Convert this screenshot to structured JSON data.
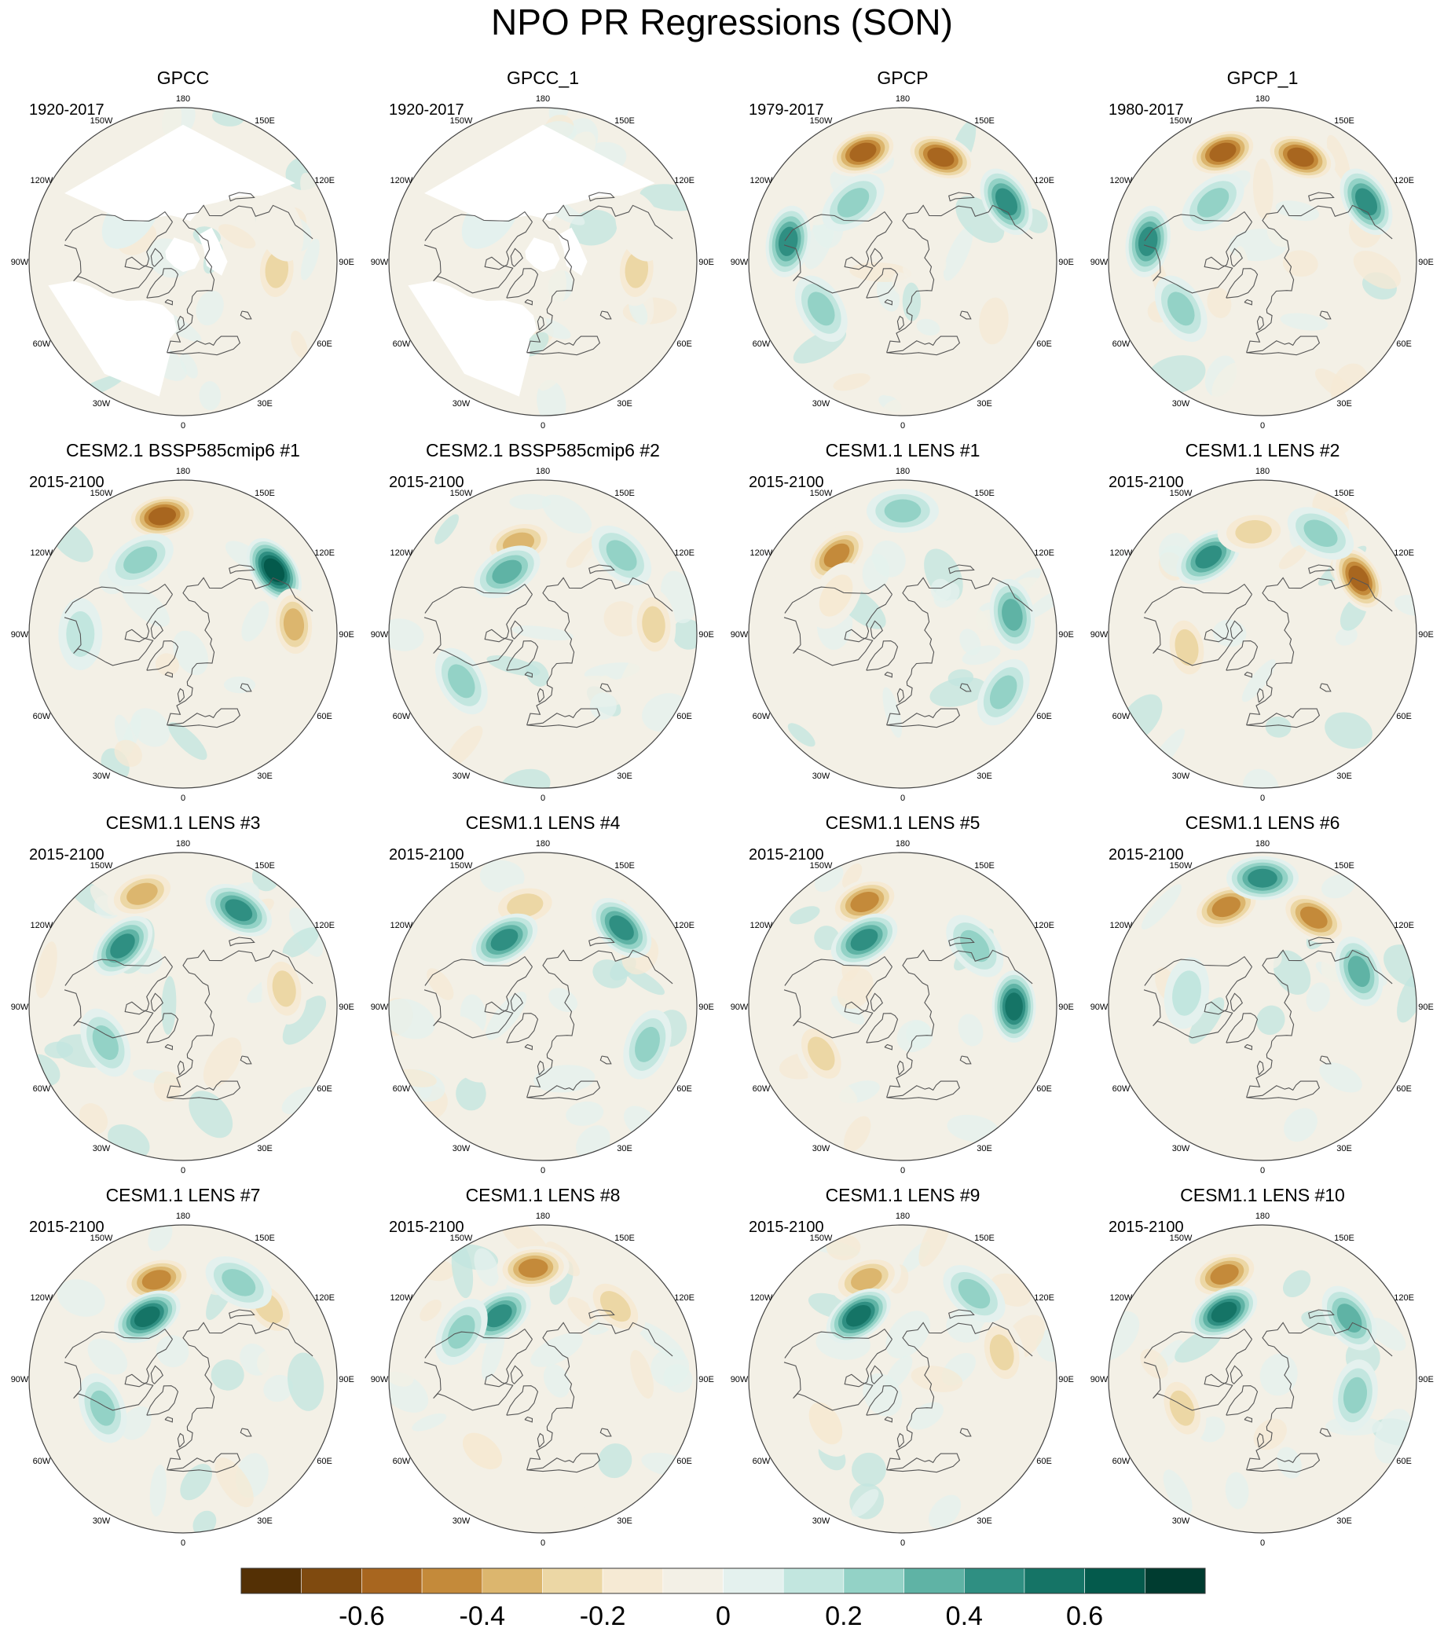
{
  "title": "NPO PR Regressions (SON)",
  "lon_labels": [
    "180",
    "150E",
    "120E",
    "90E",
    "60E",
    "30E",
    "0",
    "30W",
    "60W",
    "90W",
    "120W",
    "150W"
  ],
  "palette": [
    "#543005",
    "#7f4a0f",
    "#a8661f",
    "#c48a3a",
    "#dcb66e",
    "#ecd7a5",
    "#f6ead4",
    "#f3f0e6",
    "#e4f1ee",
    "#c2e6df",
    "#93d2c6",
    "#5fb3a5",
    "#2f8f82",
    "#157466",
    "#045a4c",
    "#003c30"
  ],
  "chart_data": {
    "type": "heatmap",
    "title": "NPO PR Regressions (SON)",
    "projection": "north-polar-stereographic",
    "colorbar": {
      "levels": [
        -0.7,
        -0.6,
        -0.5,
        -0.4,
        -0.3,
        -0.2,
        -0.1,
        0,
        0.1,
        0.2,
        0.3,
        0.4,
        0.5,
        0.6,
        0.7
      ],
      "tick_labels": [
        "-0.6",
        "-0.4",
        "-0.2",
        "0",
        "0.2",
        "0.4",
        "0.6"
      ],
      "tick_values": [
        -0.6,
        -0.4,
        -0.2,
        0,
        0.2,
        0.4,
        0.6
      ]
    },
    "panels": [
      {
        "name": "GPCC",
        "period": "1920-2017",
        "features": [
          {
            "lon": 85,
            "lat": 35,
            "value": -0.3
          },
          {
            "lon": 110,
            "lat": 30,
            "value": -0.15
          },
          {
            "lon": 230,
            "lat": 50,
            "value": 0.15
          }
        ]
      },
      {
        "name": "GPCC_1",
        "period": "1920-2017",
        "features": [
          {
            "lon": 85,
            "lat": 35,
            "value": -0.3
          },
          {
            "lon": 110,
            "lat": 30,
            "value": -0.15
          },
          {
            "lon": 230,
            "lat": 50,
            "value": 0.15
          }
        ]
      },
      {
        "name": "GPCP",
        "period": "1979-2017",
        "features": [
          {
            "lon": 200,
            "lat": 22,
            "value": -0.55
          },
          {
            "lon": 160,
            "lat": 25,
            "value": -0.6
          },
          {
            "lon": 120,
            "lat": 20,
            "value": 0.5
          },
          {
            "lon": 260,
            "lat": 22,
            "value": 0.45
          },
          {
            "lon": 300,
            "lat": 35,
            "value": 0.3
          },
          {
            "lon": 220,
            "lat": 45,
            "value": 0.25
          }
        ]
      },
      {
        "name": "GPCP_1",
        "period": "1980-2017",
        "features": [
          {
            "lon": 200,
            "lat": 22,
            "value": -0.55
          },
          {
            "lon": 160,
            "lat": 25,
            "value": -0.6
          },
          {
            "lon": 120,
            "lat": 20,
            "value": 0.5
          },
          {
            "lon": 260,
            "lat": 22,
            "value": 0.45
          },
          {
            "lon": 300,
            "lat": 35,
            "value": 0.3
          },
          {
            "lon": 220,
            "lat": 45,
            "value": 0.25
          }
        ]
      },
      {
        "name": "CESM2.1 BSSP585cmip6 #1",
        "period": "2015-2100",
        "features": [
          {
            "lon": 190,
            "lat": 20,
            "value": -0.55
          },
          {
            "lon": 125,
            "lat": 25,
            "value": 0.65
          },
          {
            "lon": 210,
            "lat": 40,
            "value": 0.35
          },
          {
            "lon": 95,
            "lat": 25,
            "value": -0.4
          },
          {
            "lon": 270,
            "lat": 30,
            "value": 0.2
          }
        ]
      },
      {
        "name": "CESM2.1 BSSP585cmip6 #2",
        "period": "2015-2100",
        "features": [
          {
            "lon": 195,
            "lat": 35,
            "value": -0.4
          },
          {
            "lon": 210,
            "lat": 48,
            "value": 0.4
          },
          {
            "lon": 135,
            "lat": 25,
            "value": 0.35
          },
          {
            "lon": 95,
            "lat": 25,
            "value": -0.35
          },
          {
            "lon": 300,
            "lat": 35,
            "value": 0.25
          }
        ]
      },
      {
        "name": "CESM1.1 LENS #1",
        "period": "2015-2100",
        "features": [
          {
            "lon": 220,
            "lat": 30,
            "value": -0.45
          },
          {
            "lon": 180,
            "lat": 18,
            "value": 0.3
          },
          {
            "lon": 100,
            "lat": 25,
            "value": 0.4
          },
          {
            "lon": 60,
            "lat": 22,
            "value": 0.35
          },
          {
            "lon": 240,
            "lat": 45,
            "value": -0.2
          }
        ]
      },
      {
        "name": "CESM1.1 LENS #2",
        "period": "2015-2100",
        "features": [
          {
            "lon": 215,
            "lat": 35,
            "value": 0.45
          },
          {
            "lon": 185,
            "lat": 30,
            "value": -0.35
          },
          {
            "lon": 120,
            "lat": 25,
            "value": -0.55
          },
          {
            "lon": 150,
            "lat": 22,
            "value": 0.35
          },
          {
            "lon": 280,
            "lat": 45,
            "value": -0.25
          }
        ]
      },
      {
        "name": "CESM1.1 LENS #3",
        "period": "2015-2100",
        "features": [
          {
            "lon": 200,
            "lat": 20,
            "value": -0.4
          },
          {
            "lon": 225,
            "lat": 40,
            "value": 0.5
          },
          {
            "lon": 150,
            "lat": 25,
            "value": 0.45
          },
          {
            "lon": 295,
            "lat": 40,
            "value": 0.35
          },
          {
            "lon": 100,
            "lat": 30,
            "value": -0.3
          }
        ]
      },
      {
        "name": "CESM1.1 LENS #4",
        "period": "2015-2100",
        "features": [
          {
            "lon": 190,
            "lat": 30,
            "value": -0.35
          },
          {
            "lon": 135,
            "lat": 25,
            "value": 0.5
          },
          {
            "lon": 210,
            "lat": 45,
            "value": 0.45
          },
          {
            "lon": 70,
            "lat": 25,
            "value": 0.3
          },
          {
            "lon": 300,
            "lat": 40,
            "value": -0.15
          }
        ]
      },
      {
        "name": "CESM1.1 LENS #5",
        "period": "2015-2100",
        "features": [
          {
            "lon": 200,
            "lat": 25,
            "value": -0.5
          },
          {
            "lon": 210,
            "lat": 45,
            "value": 0.5
          },
          {
            "lon": 90,
            "lat": 25,
            "value": 0.55
          },
          {
            "lon": 300,
            "lat": 35,
            "value": -0.25
          },
          {
            "lon": 130,
            "lat": 35,
            "value": 0.3
          }
        ]
      },
      {
        "name": "CESM1.1 LENS #6",
        "period": "2015-2100",
        "features": [
          {
            "lon": 200,
            "lat": 28,
            "value": -0.5
          },
          {
            "lon": 150,
            "lat": 30,
            "value": -0.45
          },
          {
            "lon": 180,
            "lat": 15,
            "value": 0.5
          },
          {
            "lon": 110,
            "lat": 30,
            "value": 0.4
          },
          {
            "lon": 260,
            "lat": 45,
            "value": 0.2
          }
        ]
      },
      {
        "name": "CESM1.1 LENS #7",
        "period": "2015-2100",
        "features": [
          {
            "lon": 195,
            "lat": 30,
            "value": -0.45
          },
          {
            "lon": 210,
            "lat": 48,
            "value": 0.55
          },
          {
            "lon": 130,
            "lat": 25,
            "value": -0.35
          },
          {
            "lon": 150,
            "lat": 25,
            "value": 0.35
          },
          {
            "lon": 290,
            "lat": 40,
            "value": 0.25
          }
        ]
      },
      {
        "name": "CESM1.1 LENS #8",
        "period": "2015-2100",
        "features": [
          {
            "lon": 185,
            "lat": 25,
            "value": -0.5
          },
          {
            "lon": 215,
            "lat": 45,
            "value": 0.5
          },
          {
            "lon": 240,
            "lat": 35,
            "value": 0.3
          },
          {
            "lon": 135,
            "lat": 30,
            "value": -0.25
          },
          {
            "lon": 320,
            "lat": 35,
            "value": -0.2
          }
        ]
      },
      {
        "name": "CESM1.1 LENS #9",
        "period": "2015-2100",
        "features": [
          {
            "lon": 200,
            "lat": 28,
            "value": -0.4
          },
          {
            "lon": 215,
            "lat": 45,
            "value": 0.55
          },
          {
            "lon": 105,
            "lat": 30,
            "value": -0.35
          },
          {
            "lon": 140,
            "lat": 25,
            "value": 0.3
          },
          {
            "lon": 300,
            "lat": 38,
            "value": -0.2
          }
        ]
      },
      {
        "name": "CESM1.1 LENS #10",
        "period": "2015-2100",
        "features": [
          {
            "lon": 200,
            "lat": 25,
            "value": -0.5
          },
          {
            "lon": 210,
            "lat": 45,
            "value": 0.6
          },
          {
            "lon": 125,
            "lat": 28,
            "value": 0.4
          },
          {
            "lon": 290,
            "lat": 40,
            "value": -0.25
          },
          {
            "lon": 80,
            "lat": 35,
            "value": 0.3
          }
        ]
      }
    ]
  }
}
